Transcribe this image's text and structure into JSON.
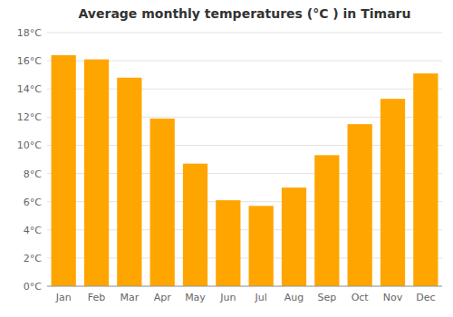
{
  "chart_data": {
    "type": "bar",
    "title": "Average monthly temperatures (°C ) in Timaru",
    "categories": [
      "Jan",
      "Feb",
      "Mar",
      "Apr",
      "May",
      "Jun",
      "Jul",
      "Aug",
      "Sep",
      "Oct",
      "Nov",
      "Dec"
    ],
    "values": [
      16.4,
      16.1,
      14.8,
      11.9,
      8.7,
      6.1,
      5.7,
      7.0,
      9.3,
      11.5,
      13.3,
      15.1
    ],
    "color": "#FFA500",
    "ylim": [
      0,
      18
    ],
    "yticks": [
      {
        "value": 0,
        "label": "0°C"
      },
      {
        "value": 2,
        "label": "2°C"
      },
      {
        "value": 4,
        "label": "4°C"
      },
      {
        "value": 6,
        "label": "6°C"
      },
      {
        "value": 8,
        "label": "8°C"
      },
      {
        "value": 10,
        "label": "10°C"
      },
      {
        "value": 12,
        "label": "12°C"
      },
      {
        "value": 14,
        "label": "14°C"
      },
      {
        "value": 16,
        "label": "16°C"
      },
      {
        "value": 18,
        "label": "18°C"
      }
    ],
    "grid": true
  }
}
